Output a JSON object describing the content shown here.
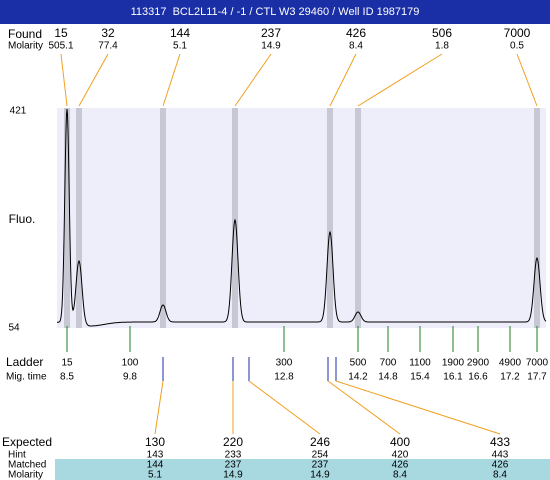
{
  "header": {
    "title": "113317  BCL2L11-4 / -1 / CTL W3 29460 / Well ID 1987179"
  },
  "found": {
    "label": "Found",
    "sublabel": "Molarity",
    "peaks": [
      {
        "size": 15,
        "molarity": 505.1
      },
      {
        "size": 32,
        "molarity": 77.4
      },
      {
        "size": 144,
        "molarity": 5.1
      },
      {
        "size": 237,
        "molarity": 14.9
      },
      {
        "size": 426,
        "molarity": 8.4
      },
      {
        "size": 506,
        "molarity": 1.8
      },
      {
        "size": 7000,
        "molarity": 0.5
      }
    ]
  },
  "plot": {
    "y_label": "Fluo.",
    "y_max": 421,
    "y_min": 54
  },
  "ladder": {
    "label": "Ladder",
    "sublabel": "Mig. time",
    "items": [
      {
        "size": 15,
        "time": 8.5
      },
      {
        "size": 100,
        "time": 9.8
      },
      {
        "size": 300,
        "time": 12.8
      },
      {
        "size": 500,
        "time": 14.2
      },
      {
        "size": 700,
        "time": 14.8
      },
      {
        "size": 1100,
        "time": 15.4
      },
      {
        "size": 1900,
        "time": 16.1
      },
      {
        "size": 2900,
        "time": 16.6
      },
      {
        "size": 4900,
        "time": 17.2
      },
      {
        "size": 7000,
        "time": 17.7
      }
    ]
  },
  "expected": {
    "labels": [
      "Expected",
      "Hint",
      "Matched",
      "Molarity"
    ],
    "items": [
      {
        "expected": 130,
        "hint": 143,
        "matched": 144,
        "molarity": 5.1,
        "color": "#000000"
      },
      {
        "expected": 220,
        "hint": 233,
        "matched": 237,
        "molarity": 14.9,
        "color": "#e00000"
      },
      {
        "expected": 246,
        "hint": 254,
        "matched": 237,
        "molarity": 14.9,
        "color": "#000000"
      },
      {
        "expected": 400,
        "hint": 420,
        "matched": 426,
        "molarity": 8.4,
        "color": "#e00000"
      },
      {
        "expected": 433,
        "hint": 443,
        "matched": 426,
        "molarity": 8.4,
        "color": "#000000"
      }
    ]
  }
}
